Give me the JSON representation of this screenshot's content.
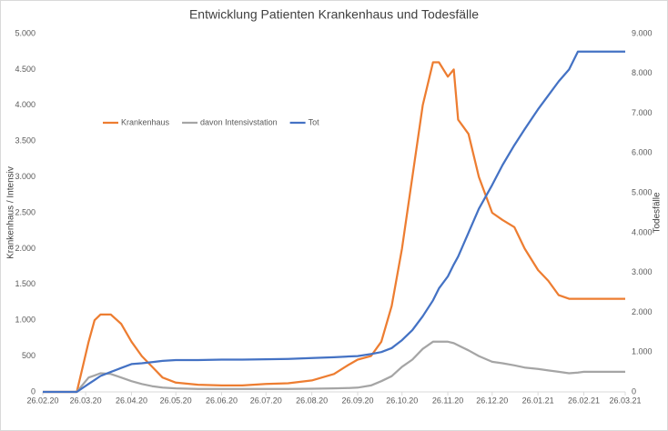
{
  "chart_data": {
    "type": "line",
    "title": "Entwicklung Patienten Krankenhaus und Todesfälle",
    "y_label": "Krankenhaus / Intensiv",
    "y2_label": "Todesfälle",
    "x": [
      "26.02.20",
      "20.03.20",
      "28.03.20",
      "01.04.20",
      "05.04.20",
      "12.04.20",
      "19.04.20",
      "26.04.20",
      "03.05.20",
      "10.05.20",
      "17.05.20",
      "26.05.20",
      "10.06.20",
      "26.06.20",
      "10.07.20",
      "26.07.20",
      "10.08.20",
      "26.08.20",
      "10.09.20",
      "20.09.20",
      "26.09.20",
      "05.10.20",
      "12.10.20",
      "19.10.20",
      "26.10.20",
      "02.11.20",
      "09.11.20",
      "16.11.20",
      "20.11.20",
      "26.11.20",
      "30.11.20",
      "03.12.20",
      "10.12.20",
      "17.12.20",
      "26.12.20",
      "02.01.21",
      "10.01.21",
      "17.01.21",
      "26.01.21",
      "02.02.21",
      "09.02.21",
      "16.02.21",
      "22.02.21",
      "26.02.21",
      "26.03.21"
    ],
    "series": [
      {
        "name": "Krankenhaus",
        "color": "#ED7D31",
        "values": [
          0,
          0,
          700,
          1000,
          1080,
          1080,
          950,
          700,
          500,
          350,
          200,
          130,
          100,
          90,
          90,
          110,
          120,
          160,
          250,
          380,
          450,
          500,
          700,
          1200,
          2000,
          3000,
          4000,
          4600,
          4600,
          4400,
          4500,
          3800,
          3600,
          3000,
          2500,
          2400,
          2300,
          2000,
          1700,
          1550,
          1350,
          1300,
          1300,
          1300,
          1300
        ]
      },
      {
        "name": "davon Intensivstation",
        "color": "#A5A5A5",
        "values": [
          0,
          0,
          200,
          230,
          260,
          250,
          200,
          150,
          110,
          80,
          60,
          50,
          40,
          40,
          40,
          40,
          40,
          45,
          50,
          55,
          60,
          90,
          150,
          220,
          350,
          450,
          600,
          700,
          700,
          700,
          680,
          650,
          580,
          500,
          420,
          400,
          370,
          340,
          320,
          300,
          280,
          260,
          270,
          280,
          280
        ]
      },
      {
        "name": "Tot",
        "color": "#4472C4",
        "axis": "y2",
        "values": [
          0,
          0,
          200,
          300,
          400,
          500,
          600,
          700,
          720,
          750,
          780,
          800,
          800,
          810,
          810,
          820,
          830,
          850,
          870,
          890,
          900,
          950,
          1000,
          1100,
          1300,
          1550,
          1900,
          2300,
          2600,
          2900,
          3200,
          3400,
          4000,
          4600,
          5200,
          5700,
          6200,
          6600,
          7100,
          7450,
          7800,
          8100,
          8550,
          8550,
          8550
        ]
      }
    ],
    "xlim": [
      "26.02.20",
      "26.03.21"
    ],
    "xticks": [
      "26.02.20",
      "26.03.20",
      "26.04.20",
      "26.05.20",
      "26.06.20",
      "26.07.20",
      "26.08.20",
      "26.09.20",
      "26.10.20",
      "26.11.20",
      "26.12.20",
      "26.01.21",
      "26.02.21",
      "26.03.21"
    ],
    "ylim": [
      0,
      5000
    ],
    "yticks": [
      0,
      500,
      {
        "value": 1000,
        "label": "1.000"
      },
      {
        "value": 1500,
        "label": "1.500"
      },
      {
        "value": 2000,
        "label": "2.000"
      },
      {
        "value": 2500,
        "label": "2.500"
      },
      {
        "value": 3000,
        "label": "3.000"
      },
      {
        "value": 3500,
        "label": "3.500"
      },
      {
        "value": 4000,
        "label": "4.000"
      },
      {
        "value": 4500,
        "label": "4.500"
      },
      {
        "value": 5000,
        "label": "5.000"
      }
    ],
    "y2lim": [
      0,
      9000
    ],
    "y2ticks": [
      0,
      {
        "value": 1000,
        "label": "1.000"
      },
      {
        "value": 2000,
        "label": "2.000"
      },
      {
        "value": 3000,
        "label": "3.000"
      },
      {
        "value": 4000,
        "label": "4.000"
      },
      {
        "value": 5000,
        "label": "5.000"
      },
      {
        "value": 6000,
        "label": "6.000"
      },
      {
        "value": 7000,
        "label": "7.000"
      },
      {
        "value": 8000,
        "label": "8.000"
      },
      {
        "value": 9000,
        "label": "9.000"
      }
    ],
    "legend": "top-left"
  }
}
